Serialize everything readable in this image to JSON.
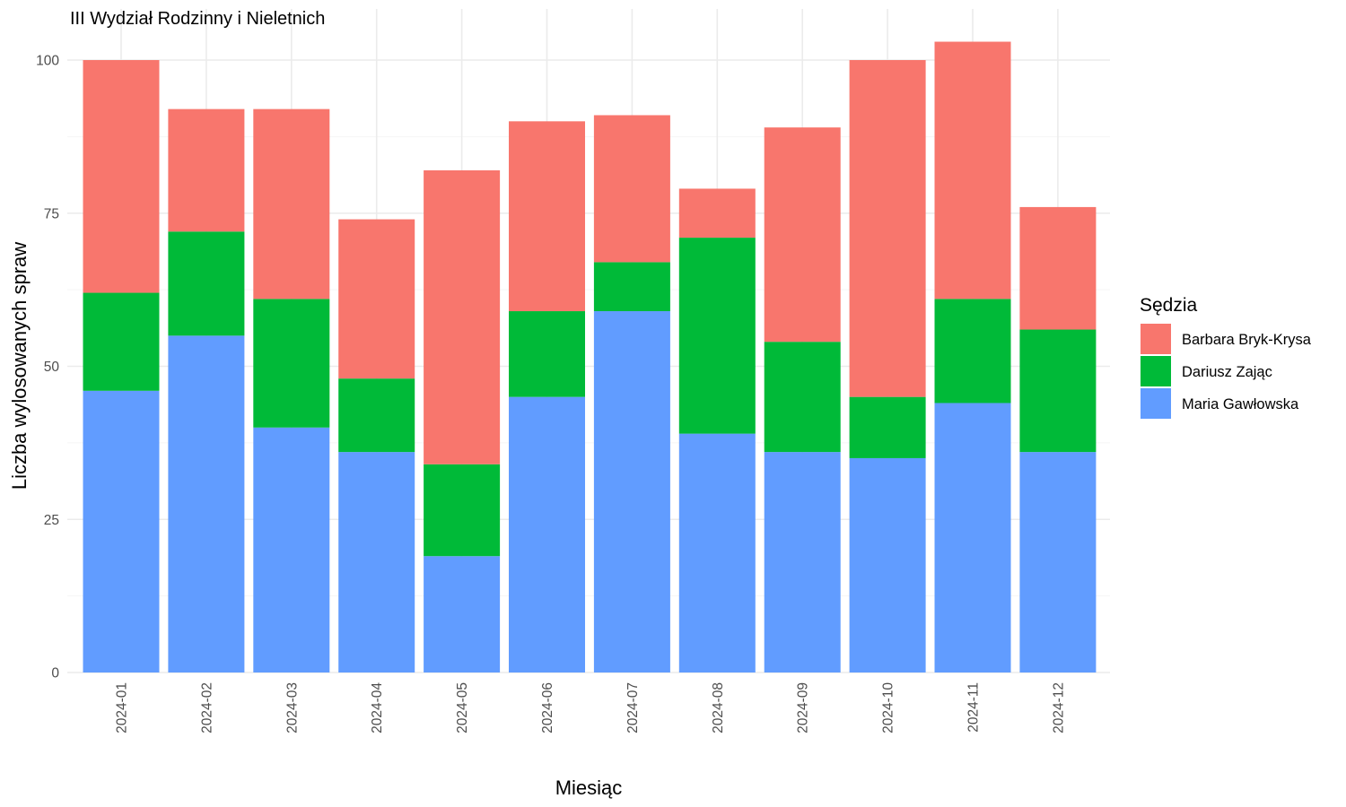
{
  "chart_data": {
    "type": "bar",
    "stacked": true,
    "title": "III Wydział Rodzinny i Nieletnich",
    "xlabel": "Miesiąc",
    "ylabel": "Liczba wylosowanych spraw",
    "ylim": [
      0,
      105
    ],
    "y_ticks": [
      0,
      25,
      50,
      75,
      100
    ],
    "grid": true,
    "legend": {
      "title": "Sędzia",
      "position": "right"
    },
    "categories": [
      "2024-01",
      "2024-02",
      "2024-03",
      "2024-04",
      "2024-05",
      "2024-06",
      "2024-07",
      "2024-08",
      "2024-09",
      "2024-10",
      "2024-11",
      "2024-12"
    ],
    "series": [
      {
        "name": "Maria Gawłowska",
        "color": "#619CFF",
        "values": [
          46,
          55,
          40,
          36,
          19,
          45,
          59,
          39,
          36,
          35,
          44,
          36
        ]
      },
      {
        "name": "Dariusz Zając",
        "color": "#00BA38",
        "values": [
          16,
          17,
          21,
          12,
          15,
          14,
          8,
          32,
          18,
          10,
          17,
          20
        ]
      },
      {
        "name": "Barbara Bryk-Krysa",
        "color": "#F8766D",
        "values": [
          38,
          20,
          31,
          26,
          48,
          31,
          24,
          8,
          35,
          55,
          42,
          20
        ]
      }
    ],
    "legend_order": [
      "Barbara Bryk-Krysa",
      "Dariusz Zając",
      "Maria Gawłowska"
    ]
  }
}
